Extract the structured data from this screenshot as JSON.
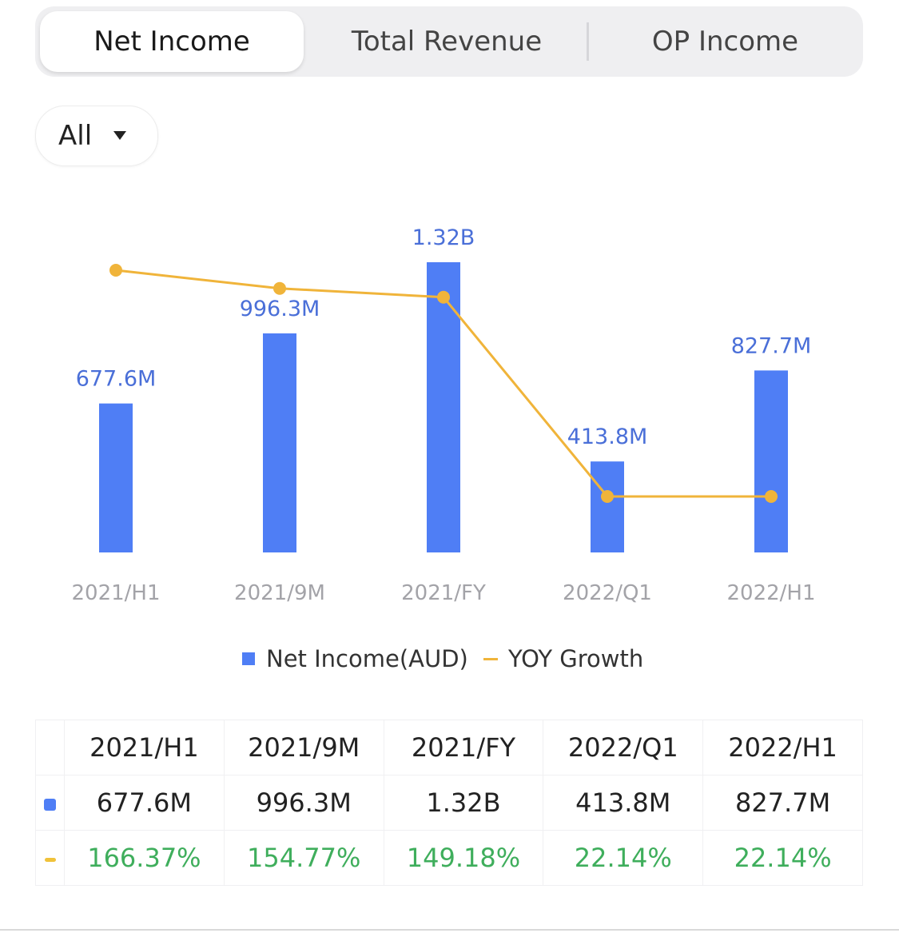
{
  "tabs": [
    {
      "label": "Net Income",
      "active": true
    },
    {
      "label": "Total Revenue",
      "active": false
    },
    {
      "label": "OP Income",
      "active": false
    }
  ],
  "filter": {
    "selected": "All"
  },
  "colors": {
    "bar": "#4f7ef5",
    "line": "#f0b43a",
    "positive": "#3fae5c"
  },
  "chart_data": {
    "type": "bar",
    "categories": [
      "2021/H1",
      "2021/9M",
      "2021/FY",
      "2022/Q1",
      "2022/H1"
    ],
    "series": [
      {
        "name": "Net Income(AUD)",
        "type": "bar",
        "values": [
          677.6,
          996.3,
          1320,
          413.8,
          827.7
        ],
        "labels": [
          "677.6M",
          "996.3M",
          "1.32B",
          "413.8M",
          "827.7M"
        ]
      },
      {
        "name": "YOY Growth",
        "type": "line",
        "values": [
          166.37,
          154.77,
          149.18,
          22.14,
          22.14
        ],
        "labels": [
          "166.37%",
          "154.77%",
          "149.18%",
          "22.14%",
          "22.14%"
        ]
      }
    ],
    "legend_position": "bottom-center",
    "grid": false
  },
  "table": {
    "header": [
      "2021/H1",
      "2021/9M",
      "2021/FY",
      "2022/Q1",
      "2022/H1"
    ],
    "net_income": [
      "677.6M",
      "996.3M",
      "1.32B",
      "413.8M",
      "827.7M"
    ],
    "yoy_growth": [
      "166.37%",
      "154.77%",
      "149.18%",
      "22.14%",
      "22.14%"
    ]
  }
}
